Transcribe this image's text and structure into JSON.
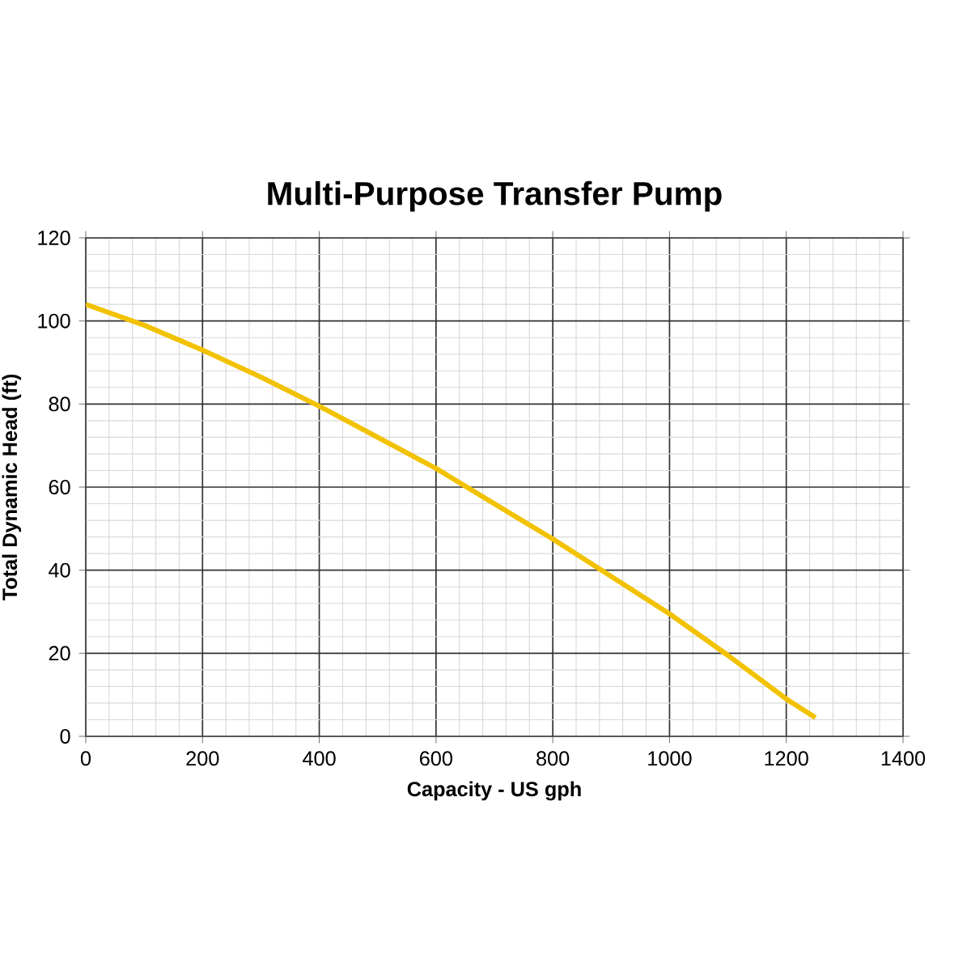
{
  "chart_data": {
    "type": "line",
    "title": "Multi-Purpose Transfer Pump",
    "xlabel": "Capacity - US gph",
    "ylabel": "Total Dynamic Head (ft)",
    "x": [
      0,
      100,
      200,
      300,
      400,
      500,
      600,
      700,
      800,
      900,
      1000,
      1100,
      1200,
      1250
    ],
    "series": [
      {
        "color": "#f2c200",
        "values": [
          104,
          99,
          93,
          86.5,
          79.5,
          72,
          64.5,
          56,
          47.5,
          38.5,
          29.5,
          19.5,
          9,
          4.5
        ]
      }
    ],
    "xlim": [
      0,
      1400
    ],
    "xticks": [
      0,
      200,
      400,
      600,
      800,
      1000,
      1200,
      1400
    ],
    "ylim": [
      0,
      120
    ],
    "yticks": [
      0,
      20,
      40,
      60,
      80,
      100,
      120
    ],
    "grid": true,
    "marker": "none",
    "line_style": "solid"
  }
}
